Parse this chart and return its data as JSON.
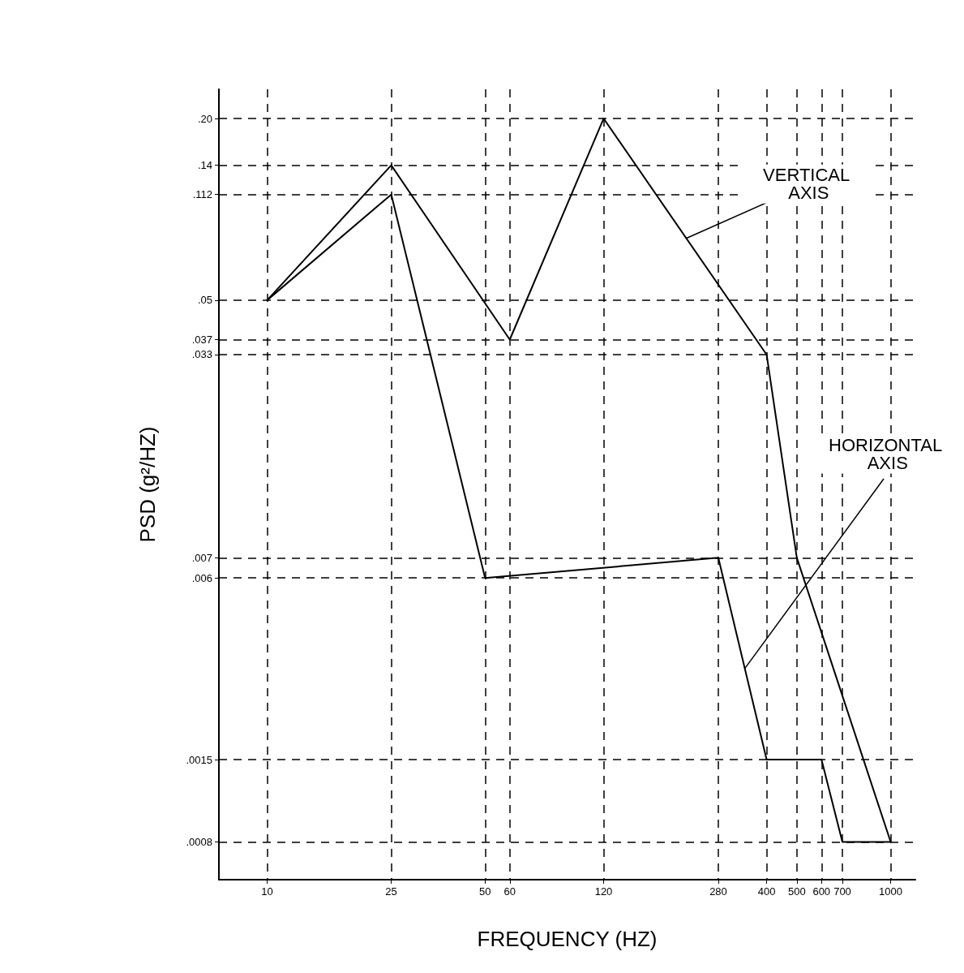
{
  "chart_data": {
    "type": "line",
    "xlabel": "FREQUENCY (HZ)",
    "ylabel": "PSD (g²/HZ)",
    "log": "xy",
    "grid": true,
    "marker": "none",
    "line_style": "solid",
    "xlim": [
      7,
      1200
    ],
    "xticks": [
      10,
      25,
      50,
      60,
      120,
      280,
      400,
      500,
      600,
      700,
      1000
    ],
    "ylim": [
      0.0006,
      0.25
    ],
    "yticks": [
      {
        "value": 0.0008,
        "label": ".0008"
      },
      {
        "value": 0.0015,
        "label": ".0015"
      },
      {
        "value": 0.006,
        "label": ".006"
      },
      {
        "value": 0.007,
        "label": ".007"
      },
      {
        "value": 0.033,
        "label": ".033"
      },
      {
        "value": 0.037,
        "label": ".037"
      },
      {
        "value": 0.05,
        "label": ".05"
      },
      {
        "value": 0.112,
        "label": ".112"
      },
      {
        "value": 0.14,
        "label": ".14"
      },
      {
        "value": 0.2,
        "label": ".20"
      }
    ],
    "series": [
      {
        "color": "#000000",
        "x": [
          10,
          25,
          60,
          120,
          400,
          500,
          1000
        ],
        "values": [
          0.05,
          0.14,
          0.037,
          0.2,
          0.033,
          0.007,
          0.0008
        ]
      },
      {
        "color": "#000000",
        "x": [
          10,
          25,
          50,
          280,
          400,
          600,
          700,
          1000
        ],
        "values": [
          0.05,
          0.112,
          0.006,
          0.007,
          0.0015,
          0.0015,
          0.0008,
          0.0008
        ]
      }
    ],
    "annotations": [
      {
        "text": "VERTICAL AXIS",
        "x": 220,
        "y": 0.08
      },
      {
        "text": "HORIZONTAL AXIS",
        "x": 340,
        "y": 0.003
      }
    ]
  }
}
